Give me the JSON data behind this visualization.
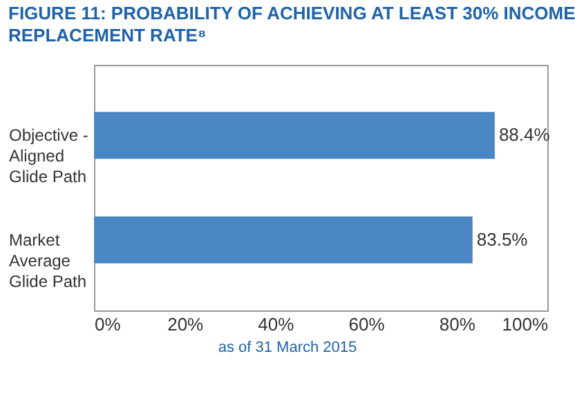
{
  "chart_data": {
    "type": "bar",
    "orientation": "horizontal",
    "title": "FIGURE 11: PROBABILITY OF ACHIEVING AT LEAST 30% INCOME\nREPLACEMENT RATE⁸",
    "categories": [
      "Objective -\nAligned\nGlide Path",
      "Market\nAverage\nGlide Path"
    ],
    "values": [
      88.4,
      83.5
    ],
    "color": "#4a86c4",
    "value_labels": [
      "88.4%",
      "83.5%"
    ],
    "xlim": [
      0,
      100
    ],
    "xticks": [
      {
        "value": 0,
        "label": "0%"
      },
      {
        "value": 20,
        "label": "20%"
      },
      {
        "value": 40,
        "label": "40%"
      },
      {
        "value": 60,
        "label": "60%"
      },
      {
        "value": 80,
        "label": "80%"
      },
      {
        "value": 100,
        "label": "100%"
      }
    ],
    "annotations": [
      "as of 31 March 2015"
    ]
  }
}
